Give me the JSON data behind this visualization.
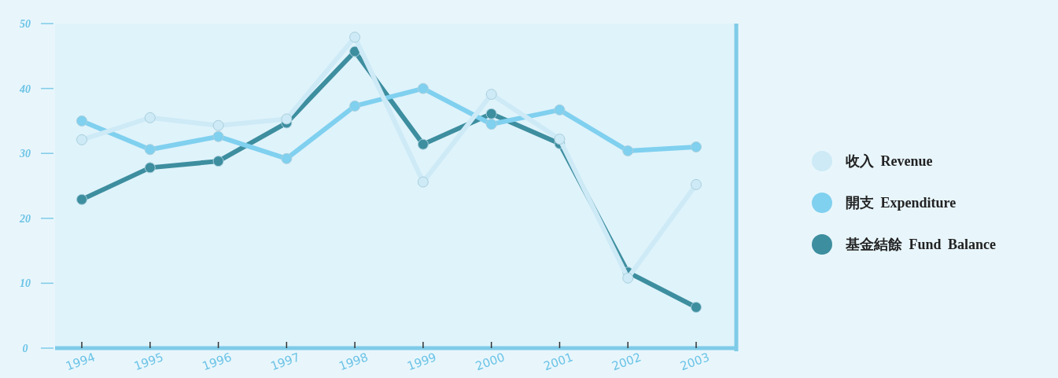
{
  "chart_data": {
    "type": "line",
    "categories": [
      "1994",
      "1995",
      "1996",
      "1997",
      "1998",
      "1999",
      "2000",
      "2001",
      "2002",
      "2003"
    ],
    "series": [
      {
        "name": "收入 Revenue",
        "color": "#cdeaf6",
        "values": [
          32.1,
          35.5,
          34.3,
          35.3,
          47.9,
          25.6,
          39.1,
          32.2,
          10.8,
          25.2
        ]
      },
      {
        "name": "開支 Expenditure",
        "color": "#80d0ef",
        "values": [
          35.0,
          30.6,
          32.6,
          29.2,
          37.3,
          40.0,
          34.5,
          36.7,
          30.4,
          31.0
        ]
      },
      {
        "name": "基金結餘 Fund Balance",
        "color": "#3d8e9f",
        "values": [
          22.9,
          27.8,
          28.8,
          34.7,
          45.7,
          31.4,
          36.1,
          31.5,
          11.7,
          6.3
        ]
      }
    ],
    "ylim": [
      0,
      50
    ],
    "yticks": [
      0,
      10,
      20,
      30,
      40,
      50
    ],
    "grid": false,
    "legend": "right",
    "marker": "circle",
    "line_style": "solid"
  }
}
